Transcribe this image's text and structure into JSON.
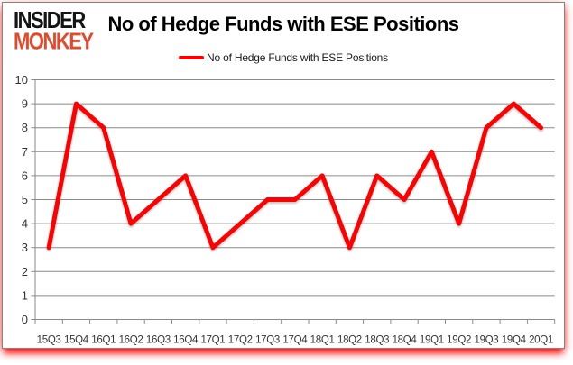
{
  "header": {
    "logo_line1": "INSIDER",
    "logo_line2": "MONKEY",
    "title": "No of Hedge Funds with ESE Positions"
  },
  "legend": {
    "label": "No of Hedge Funds with ESE Positions"
  },
  "chart_data": {
    "type": "line",
    "title": "No of Hedge Funds with ESE Positions",
    "categories": [
      "15Q3",
      "15Q4",
      "16Q1",
      "16Q2",
      "16Q3",
      "16Q4",
      "17Q1",
      "17Q2",
      "17Q3",
      "17Q4",
      "18Q1",
      "18Q2",
      "18Q3",
      "18Q4",
      "19Q1",
      "19Q2",
      "19Q3",
      "19Q4",
      "20Q1"
    ],
    "series": [
      {
        "name": "No of Hedge Funds with ESE Positions",
        "color": "#fe0000",
        "values": [
          3,
          9,
          8,
          4,
          5,
          6,
          3,
          4,
          5,
          5,
          6,
          3,
          6,
          5,
          7,
          4,
          8,
          9,
          8
        ]
      }
    ],
    "xlabel": "",
    "ylabel": "",
    "ylim": [
      0,
      10
    ],
    "ytick_step": 1,
    "grid": true,
    "legend_position": "top",
    "gridline_color": "#8a8a8a",
    "tick_label_color": "#333333"
  }
}
